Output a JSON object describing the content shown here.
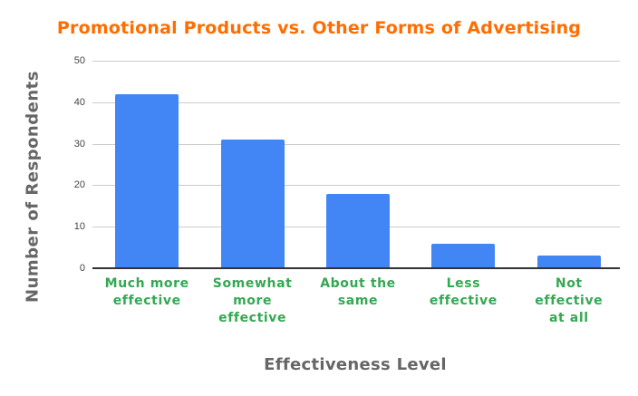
{
  "chart_data": {
    "type": "bar",
    "title": "Promotional Products vs. Other Forms of Advertising",
    "xlabel": "Effectiveness Level",
    "ylabel": "Number of Respondents",
    "categories": [
      "Much more effective",
      "Somewhat more effective",
      "About the same",
      "Less effective",
      "Not effective at all"
    ],
    "values": [
      42,
      31,
      18,
      6,
      3
    ],
    "ylim": [
      0,
      50
    ],
    "yticks": [
      0,
      10,
      20,
      30,
      40,
      50
    ],
    "grid": true,
    "legend": "none",
    "colors": {
      "bar": "#4285f4",
      "title": "#ff6d01",
      "category_labels": "#34a853",
      "axis_titles": "#666666"
    }
  },
  "labels": {
    "title": "Promotional Products vs. Other Forms of Advertising",
    "xlabel": "Effectiveness Level",
    "ylabel": "Number of Respondents",
    "yticks": [
      "0",
      "10",
      "20",
      "30",
      "40",
      "50"
    ],
    "categories_display": [
      "Much more\neffective",
      "Somewhat\nmore\neffective",
      "About the\nsame",
      "Less\neffective",
      "Not\neffective\nat all"
    ]
  }
}
